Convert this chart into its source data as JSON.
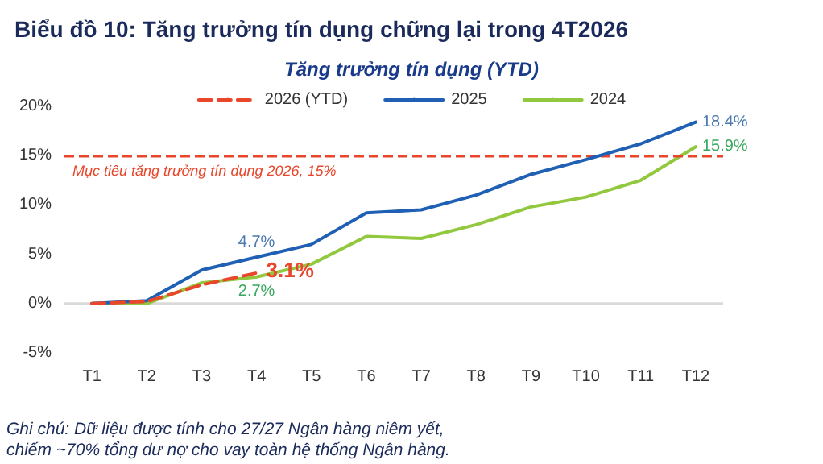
{
  "chart_data": {
    "type": "line",
    "title": "Biểu đồ 10: Tăng trưởng tín dụng chững lại trong 4T2026",
    "subtitle": "Tăng trưởng tín dụng (YTD)",
    "categories": [
      "T1",
      "T2",
      "T3",
      "T4",
      "T5",
      "T6",
      "T7",
      "T8",
      "T9",
      "T10",
      "T11",
      "T12"
    ],
    "series": [
      {
        "name": "2026 (YTD)",
        "color": "#e8472c",
        "line_style": "dashed",
        "values": [
          0,
          0.2,
          1.9,
          3.1,
          null,
          null,
          null,
          null,
          null,
          null,
          null,
          null
        ],
        "value_labels": [
          null,
          null,
          null,
          "3.1%",
          null,
          null,
          null,
          null,
          null,
          null,
          null,
          null
        ]
      },
      {
        "name": "2025",
        "color": "#1f5fb4",
        "line_style": "solid",
        "values": [
          0,
          0.3,
          3.4,
          4.7,
          6.0,
          9.2,
          9.5,
          11.0,
          13.1,
          14.6,
          16.2,
          18.4
        ],
        "value_labels": [
          null,
          null,
          null,
          "4.7%",
          null,
          null,
          null,
          null,
          null,
          null,
          null,
          "18.4%"
        ]
      },
      {
        "name": "2024",
        "color": "#92c83e",
        "line_style": "solid",
        "values": [
          0,
          0,
          2.1,
          2.7,
          4.0,
          6.8,
          6.6,
          8.0,
          9.8,
          10.8,
          12.5,
          15.9
        ],
        "value_labels": [
          null,
          null,
          null,
          "2.7%",
          null,
          null,
          null,
          null,
          null,
          null,
          null,
          "15.9%"
        ]
      }
    ],
    "ylim": [
      -5,
      20
    ],
    "yticks": [
      {
        "value": -5,
        "label": "-5%"
      },
      {
        "value": 0,
        "label": "0%"
      },
      {
        "value": 5,
        "label": "5%"
      },
      {
        "value": 10,
        "label": "10%"
      },
      {
        "value": 15,
        "label": "15%"
      },
      {
        "value": 20,
        "label": "20%"
      }
    ],
    "ref_lines": [
      {
        "axis": "y",
        "value": 15,
        "label": "Mục tiêu tăng trưởng tín dụng 2026, 15%",
        "color": "#e8472c",
        "line_style": "dashed"
      }
    ],
    "grid": false,
    "legend": "top",
    "marker": "none",
    "annotations": [
      "Ghi chú: Dữ liệu được tính cho 27/27 Ngân hàng niêm yết,\nchiếm ~70% tổng dư nợ cho vay toàn hệ thống Ngân hàng."
    ]
  }
}
